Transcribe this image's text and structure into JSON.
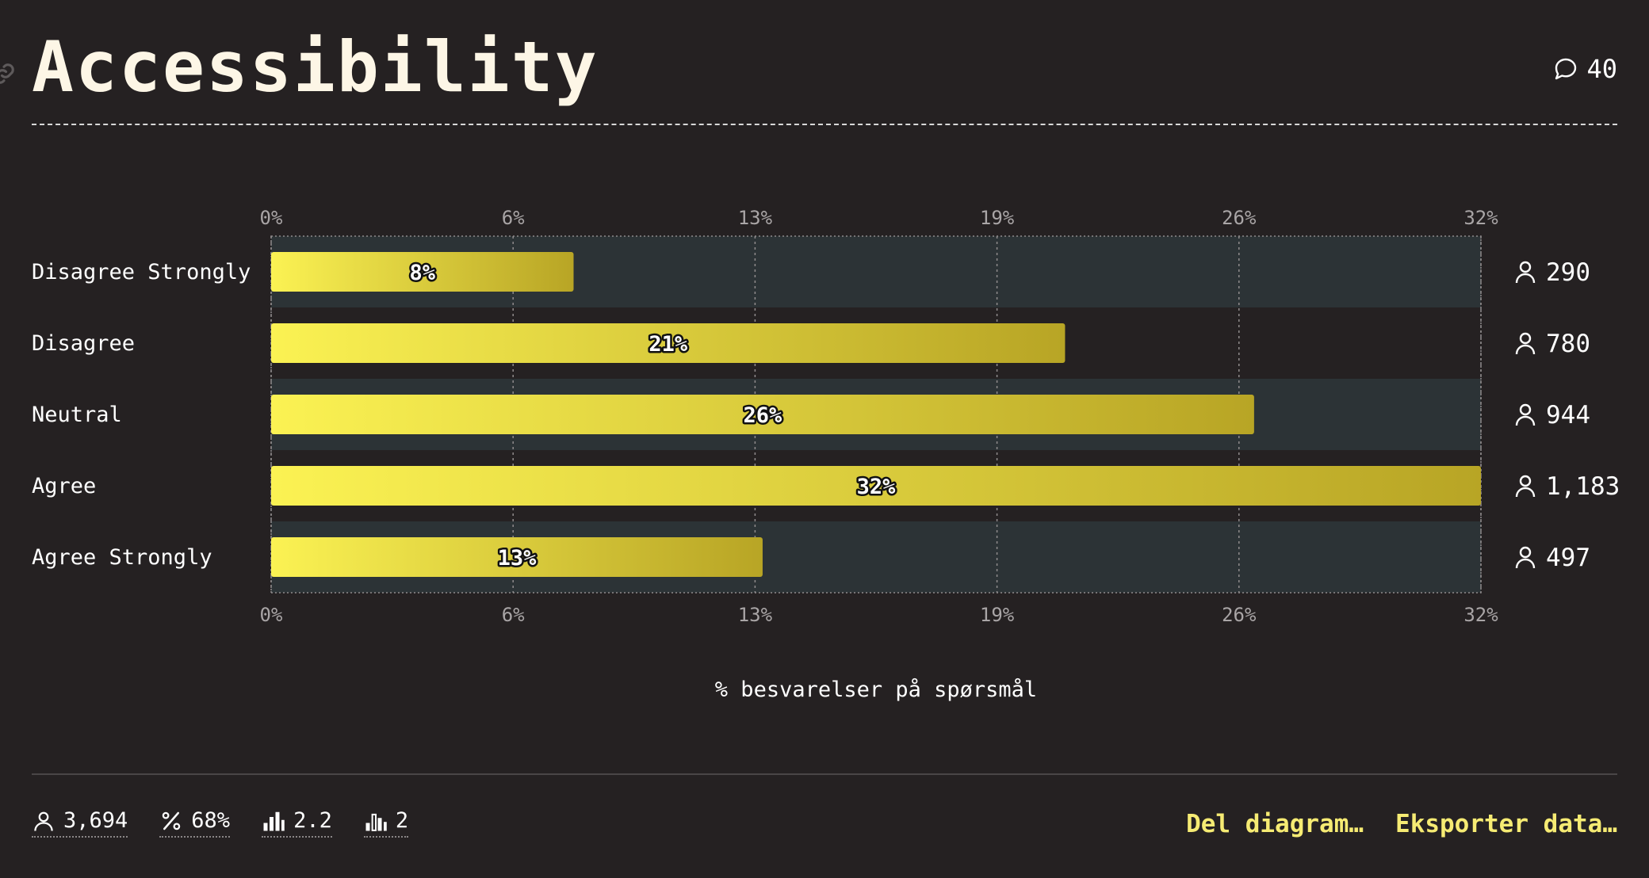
{
  "header": {
    "title": "Accessibility",
    "comment_count": "40"
  },
  "chart_data": {
    "type": "bar",
    "orientation": "horizontal",
    "categories": [
      "Disagree Strongly",
      "Disagree",
      "Neutral",
      "Agree",
      "Agree Strongly"
    ],
    "values": [
      8,
      21,
      26,
      32,
      13
    ],
    "value_labels": [
      "8%",
      "21%",
      "26%",
      "32%",
      "13%"
    ],
    "counts": [
      "290",
      "780",
      "944",
      "1,183",
      "497"
    ],
    "xlim": [
      0,
      32
    ],
    "tick_labels": [
      "0%",
      "6%",
      "13%",
      "19%",
      "26%",
      "32%"
    ],
    "xlabel": "% besvarelser på spørsmål",
    "grid": true,
    "colors": {
      "bar_start": "#fbf253",
      "bar_end": "#b8a525",
      "row_band": "#2c3336"
    }
  },
  "footer": {
    "stats": [
      {
        "icon": "person-icon",
        "value": "3,694"
      },
      {
        "icon": "percent-icon",
        "value": "68%"
      },
      {
        "icon": "bar-chart-icon",
        "value": "2.2"
      },
      {
        "icon": "bar-chart-outline-icon",
        "value": "2"
      }
    ],
    "actions": [
      "Del diagram…",
      "Eksporter data…"
    ]
  }
}
